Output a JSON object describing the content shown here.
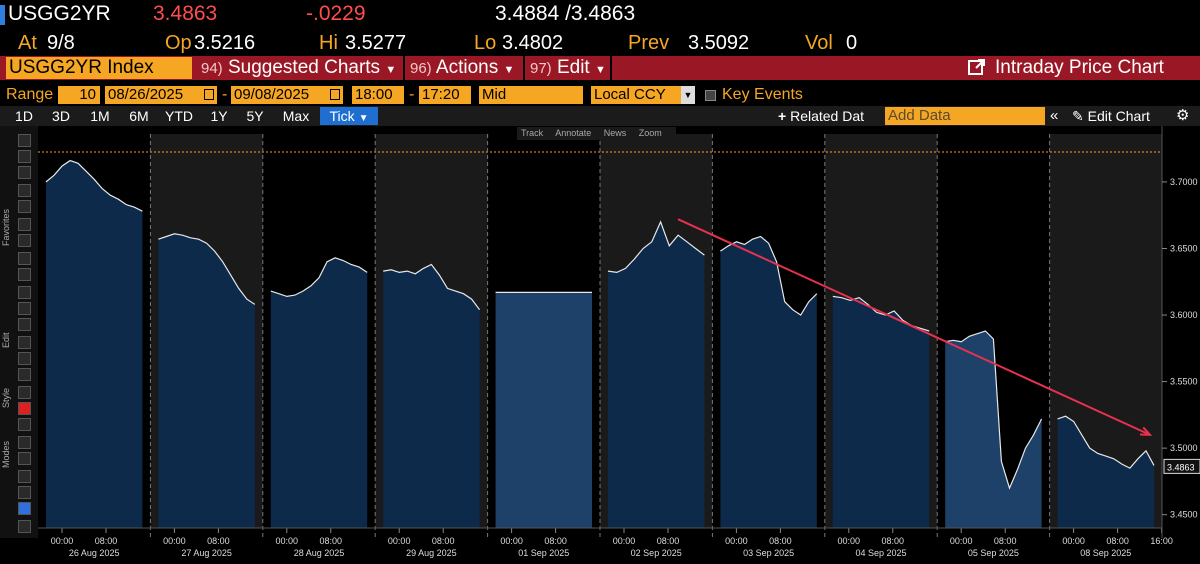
{
  "header": {
    "ticker": "USGG2YR",
    "last": "3.4863",
    "change": "-.0229",
    "bid_ask": "3.4884 /3.4863",
    "at_label": "At",
    "at_value": "9/8",
    "op_label": "Op",
    "op_value": "3.5216",
    "hi_label": "Hi",
    "hi_value": "3.5277",
    "lo_label": "Lo",
    "lo_value": "3.4802",
    "prev_label": "Prev",
    "prev_value": "3.5092",
    "vol_label": "Vol",
    "vol_value": "0"
  },
  "menu": {
    "index": "USGG2YR Index",
    "suggested_num": "94)",
    "suggested": "Suggested Charts",
    "actions_num": "96)",
    "actions": "Actions",
    "edit_num": "97)",
    "edit": "Edit",
    "title": "Intraday Price Chart"
  },
  "range": {
    "label": "Range",
    "days": "10",
    "start": "08/26/2025",
    "end": "09/08/2025",
    "time_start": "18:00",
    "time_end": "17:20",
    "field": "Mid",
    "currency": "Local CCY",
    "key_events": "Key Events"
  },
  "toolbar": {
    "periods": [
      "1D",
      "3D",
      "1M",
      "6M",
      "YTD",
      "1Y",
      "5Y",
      "Max"
    ],
    "tick": "Tick",
    "related": "Related Dat",
    "add_placeholder": "Add Data",
    "edit_chart": "Edit Chart"
  },
  "mini_toolbar": [
    "Track",
    "Annotate",
    "News",
    "Zoom"
  ],
  "side_labels": [
    "Favorites",
    "Edit",
    "Style",
    "Modes"
  ],
  "colors": {
    "amber": "#f5a623",
    "menu_red": "#9a1826",
    "area_fill": "#0d2a4a",
    "area_fill_light": "#1d4168",
    "trend_arrow": "#e8314f",
    "last_red": "#ff4d4d"
  },
  "chart_data": {
    "type": "area",
    "ylim": [
      3.44,
      3.73
    ],
    "y_ticks": [
      "3.7000",
      "3.6500",
      "3.6000",
      "3.5500",
      "3.5000",
      "3.4500"
    ],
    "last_value_label": "3.4863",
    "reference_line": 3.7225,
    "sessions": [
      {
        "date": "26 Aug 2025",
        "time_labels": [
          "00:00",
          "08:00"
        ],
        "values": [
          3.7,
          3.705,
          3.712,
          3.716,
          3.714,
          3.708,
          3.702,
          3.695,
          3.69,
          3.687,
          3.683,
          3.681,
          3.678
        ]
      },
      {
        "date": "27 Aug 2025",
        "time_labels": [
          "00:00",
          "08:00"
        ],
        "values": [
          3.657,
          3.659,
          3.661,
          3.66,
          3.658,
          3.657,
          3.654,
          3.648,
          3.64,
          3.63,
          3.62,
          3.612,
          3.608
        ]
      },
      {
        "date": "28 Aug 2025",
        "time_labels": [
          "00:00",
          "08:00"
        ],
        "values": [
          3.618,
          3.616,
          3.614,
          3.615,
          3.618,
          3.622,
          3.628,
          3.64,
          3.643,
          3.641,
          3.638,
          3.636,
          3.632
        ]
      },
      {
        "date": "29 Aug 2025",
        "time_labels": [
          "00:00",
          "08:00"
        ],
        "values": [
          3.633,
          3.634,
          3.632,
          3.633,
          3.631,
          3.635,
          3.638,
          3.63,
          3.62,
          3.618,
          3.616,
          3.612,
          3.604
        ]
      },
      {
        "date": "01 Sep 2025",
        "time_labels": [
          "00:00",
          "08:00"
        ],
        "values": [
          3.617,
          3.617
        ]
      },
      {
        "date": "02 Sep 2025",
        "time_labels": [
          "00:00",
          "08:00"
        ],
        "values": [
          3.633,
          3.632,
          3.635,
          3.642,
          3.65,
          3.655,
          3.67,
          3.652,
          3.66,
          3.655,
          3.65,
          3.645
        ]
      },
      {
        "date": "03 Sep 2025",
        "time_labels": [
          "00:00",
          "08:00"
        ],
        "values": [
          3.648,
          3.652,
          3.655,
          3.653,
          3.657,
          3.659,
          3.654,
          3.64,
          3.61,
          3.604,
          3.6,
          3.61,
          3.616
        ]
      },
      {
        "date": "04 Sep 2025",
        "time_labels": [
          "00:00",
          "08:00"
        ],
        "values": [
          3.614,
          3.613,
          3.611,
          3.613,
          3.608,
          3.602,
          3.6,
          3.603,
          3.596,
          3.592,
          3.59,
          3.588
        ]
      },
      {
        "date": "05 Sep 2025",
        "time_labels": [
          "00:00",
          "08:00"
        ],
        "values": [
          3.58,
          3.581,
          3.58,
          3.584,
          3.586,
          3.588,
          3.582,
          3.49,
          3.47,
          3.484,
          3.5,
          3.51,
          3.522
        ]
      },
      {
        "date": "08 Sep 2025",
        "time_labels": [
          "00:00",
          "08:00",
          "16:00"
        ],
        "values": [
          3.522,
          3.524,
          3.52,
          3.51,
          3.5,
          3.496,
          3.494,
          3.492,
          3.488,
          3.485,
          3.492,
          3.498,
          3.487
        ]
      }
    ]
  }
}
